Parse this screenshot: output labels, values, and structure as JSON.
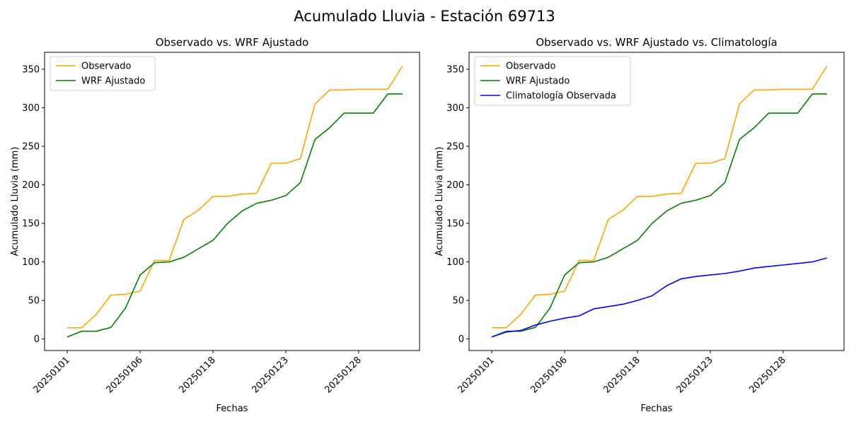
{
  "figure": {
    "title": "Acumulado Lluvia - Estación 69713"
  },
  "colors": {
    "observado": "#ffa500",
    "wrf": "#008000",
    "climatologia": "#0000ff"
  },
  "chart_data": [
    {
      "type": "line",
      "title": "Observado vs. WRF Ajustado",
      "xlabel": "Fechas",
      "ylabel": "Acumulado Lluvia (mm)",
      "x_tick_labels": [
        "20250101",
        "20250106",
        "20250118",
        "20250123",
        "20250128"
      ],
      "x_tick_index": [
        0,
        5,
        10,
        15,
        20
      ],
      "ylim": [
        -15,
        372
      ],
      "yticks": [
        0,
        50,
        100,
        150,
        200,
        250,
        300,
        350
      ],
      "legend": "top-left",
      "grid": false,
      "series": [
        {
          "name": "Observado",
          "color": "#ffa500",
          "values": [
            14.5,
            14.5,
            32,
            57,
            58,
            62,
            102,
            102,
            155,
            167,
            185,
            185,
            188,
            189,
            228,
            228,
            234,
            305,
            323,
            323,
            324,
            324,
            324,
            354
          ]
        },
        {
          "name": "WRF Ajustado",
          "color": "#008000",
          "values": [
            2.5,
            10,
            10,
            15,
            40,
            83,
            99,
            100,
            106,
            117,
            128,
            150,
            166,
            176,
            180,
            186,
            203,
            259,
            274,
            293,
            293,
            293,
            318,
            318
          ]
        }
      ]
    },
    {
      "type": "line",
      "title": "Observado vs. WRF Ajustado vs. Climatología",
      "xlabel": "Fechas",
      "ylabel": "Acumulado Lluvia (mm)",
      "x_tick_labels": [
        "20250101",
        "20250106",
        "20250118",
        "20250123",
        "20250128"
      ],
      "x_tick_index": [
        0,
        5,
        10,
        15,
        20
      ],
      "ylim": [
        -15,
        372
      ],
      "yticks": [
        0,
        50,
        100,
        150,
        200,
        250,
        300,
        350
      ],
      "legend": "top-left",
      "grid": false,
      "series": [
        {
          "name": "Observado",
          "color": "#ffa500",
          "values": [
            14.5,
            14.5,
            32,
            57,
            58,
            62,
            102,
            102,
            155,
            167,
            185,
            185,
            188,
            189,
            228,
            228,
            234,
            305,
            323,
            323,
            324,
            324,
            324,
            354
          ]
        },
        {
          "name": "WRF Ajustado",
          "color": "#008000",
          "values": [
            2.5,
            10,
            10,
            15,
            40,
            83,
            99,
            100,
            106,
            117,
            128,
            150,
            166,
            176,
            180,
            186,
            203,
            259,
            274,
            293,
            293,
            293,
            318,
            318
          ]
        },
        {
          "name": "Climatología Observada",
          "color": "#0000ff",
          "values": [
            2.5,
            9,
            11,
            18,
            23,
            27,
            30,
            39,
            42,
            45,
            50,
            56,
            69,
            78,
            81,
            83,
            85,
            88,
            92,
            94,
            96,
            98,
            100,
            105
          ]
        }
      ]
    }
  ]
}
